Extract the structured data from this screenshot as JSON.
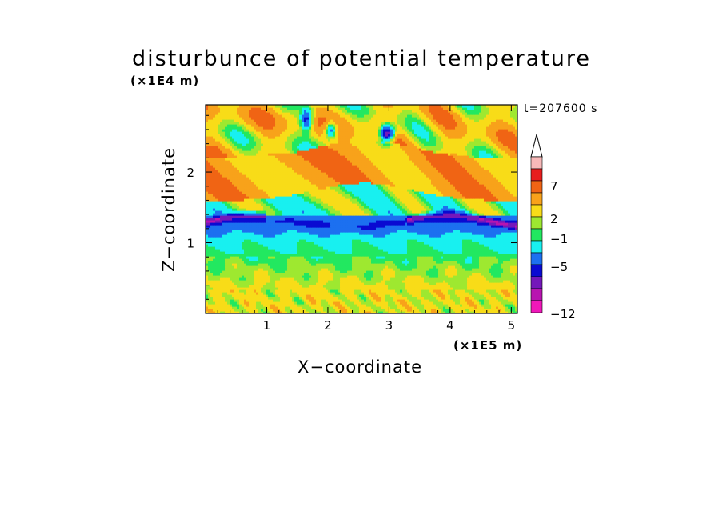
{
  "chart_data": {
    "type": "heatmap",
    "title": "disturbunce of potential temperature",
    "xlabel": "X−coordinate",
    "ylabel": "Z−coordinate",
    "x_unit": "(×1E5 m)",
    "y_unit": "(×1E4 m)",
    "annotation": "t=207600 s",
    "xlim": [
      0,
      5.1
    ],
    "ylim": [
      0,
      2.95
    ],
    "x_ticks": [
      1,
      2,
      3,
      4,
      5
    ],
    "x_tick_labels": [
      "1",
      "2",
      "3",
      "4",
      "5"
    ],
    "y_ticks": [
      1,
      2
    ],
    "y_tick_labels": [
      "1",
      "2"
    ],
    "colorbar": {
      "labels": [
        "7",
        "2",
        "−1",
        "−5",
        "−12"
      ],
      "label_levels": [
        7,
        2,
        -1,
        -5,
        -12
      ],
      "colors_top_to_bottom": [
        "#f7b8b8",
        "#e81e1e",
        "#f06414",
        "#f8a21a",
        "#f8dc18",
        "#9ee830",
        "#22e860",
        "#18f0f0",
        "#1c70f0",
        "#0a0ad2",
        "#7418ba",
        "#b814b0",
        "#f018ba"
      ],
      "extend_top_arrow": true
    },
    "bands": [
      {
        "z_range": [
          0.0,
          0.75
        ],
        "dominant_value": 1.5,
        "description_color": "#f8dc18"
      },
      {
        "z_range": [
          0.75,
          0.85
        ],
        "dominant_value": 0,
        "description_color": "#22e860"
      },
      {
        "z_range": [
          0.85,
          1.25
        ],
        "dominant_value": -1,
        "description_color": "#18f0f0"
      },
      {
        "z_range": [
          1.25,
          1.35
        ],
        "dominant_value": -4,
        "description_color": "#1c70f0"
      },
      {
        "z_range": [
          1.35,
          1.6
        ],
        "dominant_value": 0,
        "description_color": "#22e860"
      },
      {
        "z_range": [
          1.6,
          2.2
        ],
        "dominant_value": 3,
        "description_color": "#f8a21a"
      },
      {
        "z_range": [
          2.2,
          2.95
        ],
        "dominant_value": 2,
        "description_color": "#f8dc18"
      }
    ]
  }
}
